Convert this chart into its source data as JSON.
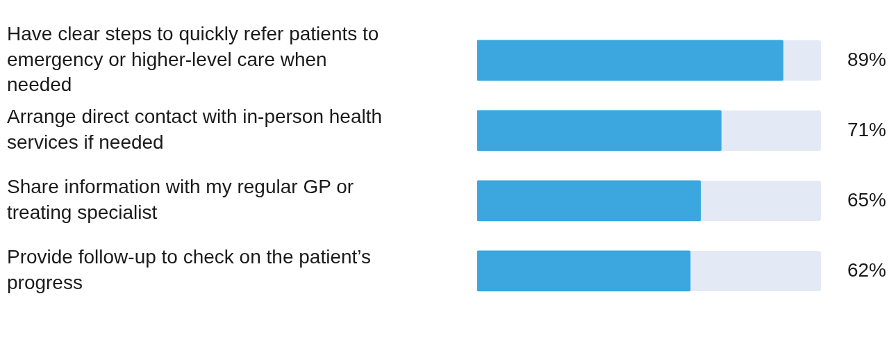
{
  "chart_data": {
    "type": "bar",
    "orientation": "horizontal",
    "categories": [
      "Have clear steps to quickly refer patients to emergency or higher-level care when needed",
      "Arrange direct contact with in-person health services if needed",
      "Share information with my regular GP or treating specialist",
      "Provide follow-up to check on the patient’s progress"
    ],
    "values": [
      89,
      71,
      65,
      62
    ],
    "value_labels": [
      "89%",
      "71%",
      "65%",
      "62%"
    ],
    "color": "#3ba7de",
    "xlim": [
      0,
      100
    ],
    "tick_labels": "y",
    "legend": false
  }
}
